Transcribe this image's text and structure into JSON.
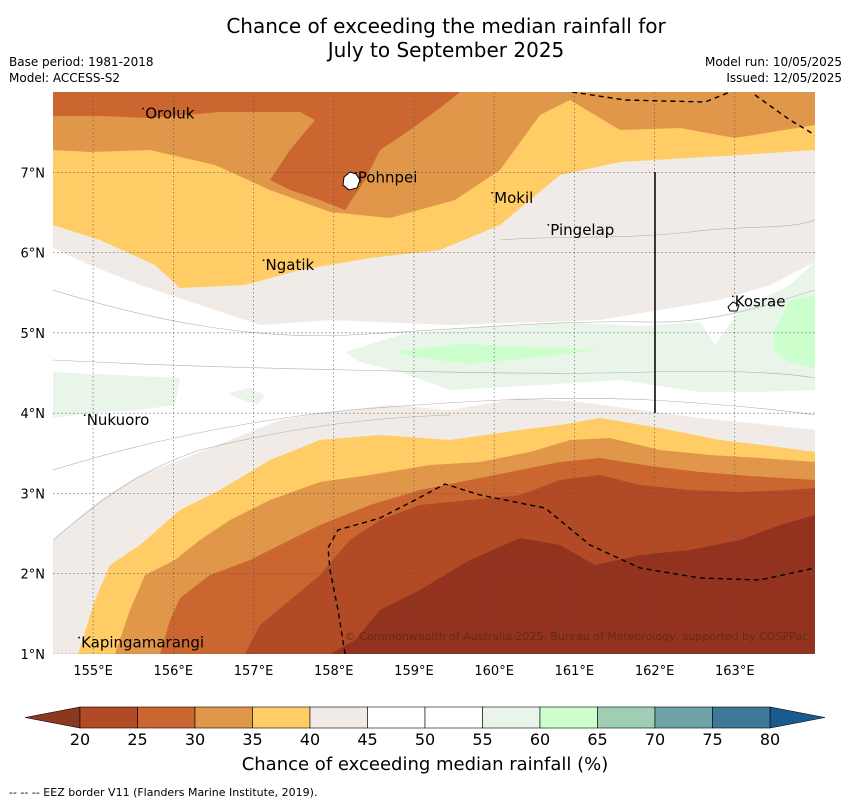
{
  "title_line1": "Chance of exceeding the median rainfall for",
  "title_line2": "July to September 2025",
  "meta": {
    "base_period": "Base period: 1981-2018",
    "model": "Model: ACCESS-S2",
    "model_run": "Model run: 10/05/2025",
    "issued": "Issued: 12/05/2025"
  },
  "axes": {
    "lon_ticks": [
      "155°E",
      "156°E",
      "157°E",
      "158°E",
      "159°E",
      "160°E",
      "161°E",
      "162°E",
      "163°E"
    ],
    "lon_values": [
      155,
      156,
      157,
      158,
      159,
      160,
      161,
      162,
      163
    ],
    "lat_ticks": [
      "1°N",
      "2°N",
      "3°N",
      "4°N",
      "5°N",
      "6°N",
      "7°N"
    ],
    "lat_values": [
      1,
      2,
      3,
      4,
      5,
      6,
      7
    ],
    "lon_range": [
      154.5,
      164
    ],
    "lat_range": [
      1,
      8
    ]
  },
  "places": [
    {
      "name": "Oroluk",
      "lon": 155.65,
      "lat": 7.67
    },
    {
      "name": "Pohnpei",
      "lon": 158.3,
      "lat": 6.87
    },
    {
      "name": "Mokil",
      "lon": 160.0,
      "lat": 6.62
    },
    {
      "name": "Pingelap",
      "lon": 160.7,
      "lat": 6.22
    },
    {
      "name": "Ngatik",
      "lon": 157.15,
      "lat": 5.78
    },
    {
      "name": "Kosrae",
      "lon": 163.0,
      "lat": 5.33
    },
    {
      "name": "Nukuoro",
      "lon": 154.92,
      "lat": 3.85
    },
    {
      "name": "Kapingamarangi",
      "lon": 154.85,
      "lat": 1.08
    }
  ],
  "copyright": "© Commonwealth of Australia 2025, Bureau of Meteorology, supported by COSPPac",
  "colorbar": {
    "ticks": [
      20,
      25,
      30,
      35,
      40,
      45,
      50,
      55,
      60,
      65,
      70,
      75,
      80
    ],
    "colors": [
      "#b14a25",
      "#cc6630",
      "#e0974a",
      "#ffcc66",
      "#f0ebe6",
      "#ffffff",
      "#ffffff",
      "#e9f5e9",
      "#ccffcc",
      "#9ecfb4",
      "#6fa3a8",
      "#3f7896"
    ],
    "extend_low": "#8c3720",
    "extend_high": "#1a5a8c",
    "label": "Chance of exceeding median rainfall (%)"
  },
  "footnote": "--  --  -- EEZ border V11 (Flanders Marine Institute, 2019)."
}
